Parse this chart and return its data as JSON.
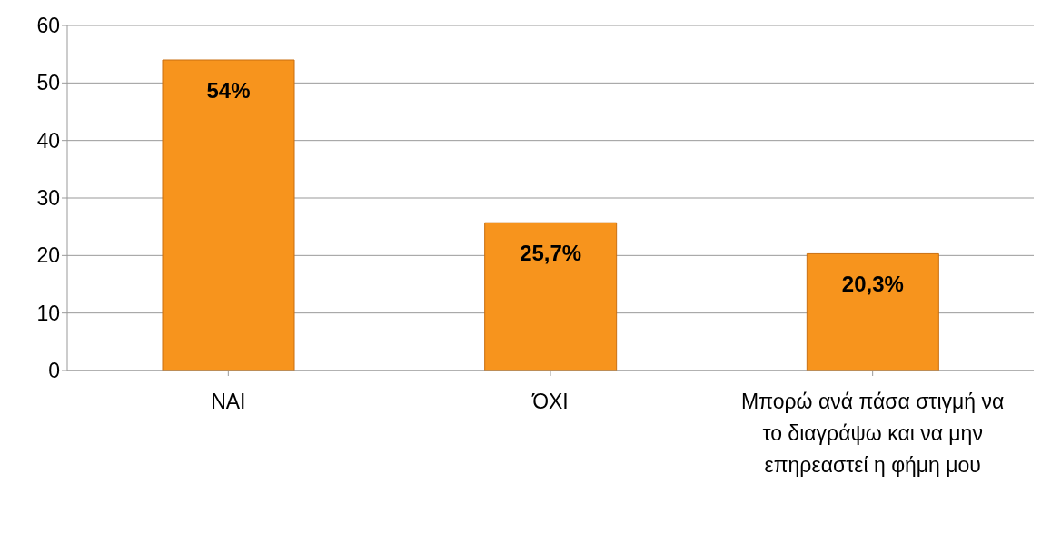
{
  "chart_data": {
    "type": "bar",
    "categories": [
      "ΝΑΙ",
      "ΌΧΙ",
      "Μπορώ ανά πάσα στιγμή να το διαγράψω και να μην επηρεαστεί η φήμη μου"
    ],
    "values": [
      54,
      25.7,
      20.3
    ],
    "value_labels": [
      "54%",
      "25,7%",
      "20,3%"
    ],
    "color": "#f7941d",
    "ylim": [
      0,
      60
    ],
    "yticks": [
      0,
      10,
      20,
      30,
      40,
      50,
      60
    ],
    "grid": "y",
    "legend": false
  }
}
